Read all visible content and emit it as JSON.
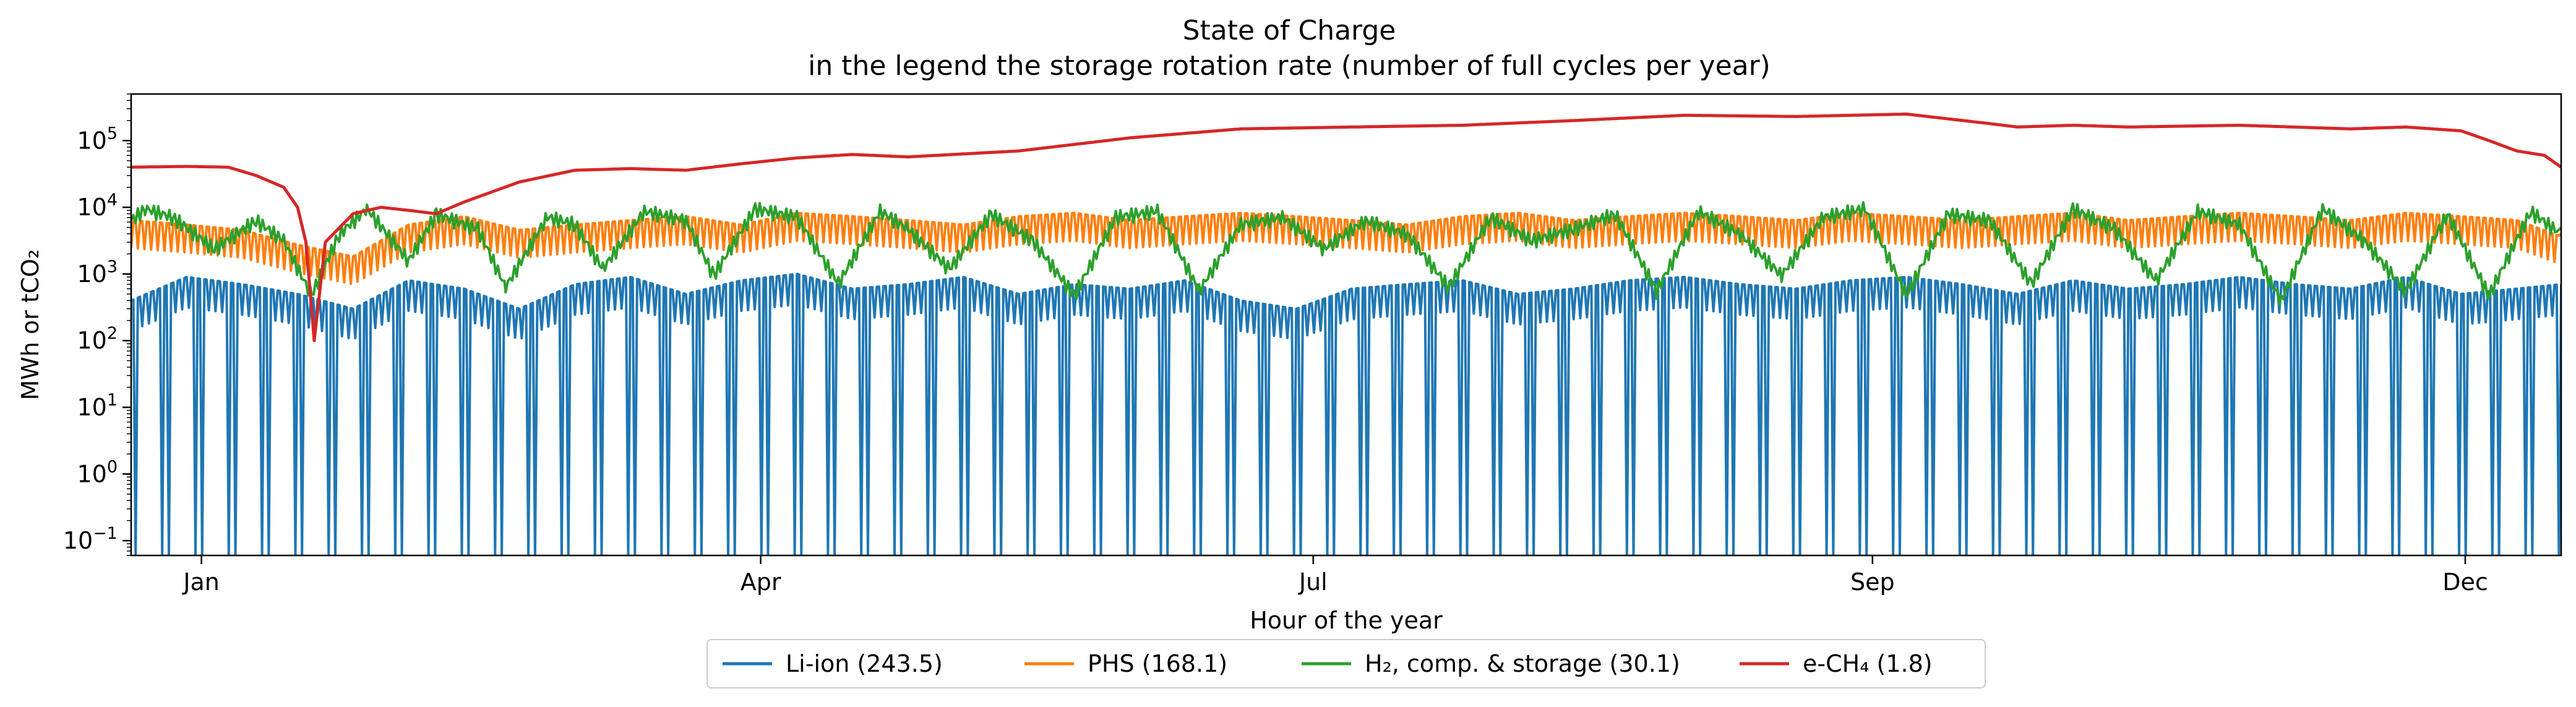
{
  "chart_data": {
    "type": "line",
    "title": "State of Charge",
    "subtitle": "in the legend the storage rotation rate (number of full cycles per year)",
    "xlabel": "Hour of the year",
    "ylabel": "MWh or tCO₂",
    "yscale": "log",
    "ylim": [
      0.06,
      500000
    ],
    "xlim": [
      0,
      8760
    ],
    "x_ticks": [
      {
        "label": "Jan",
        "x": 744
      },
      {
        "label": "Apr",
        "x": 2760
      },
      {
        "label": "Jul",
        "x": 4752
      },
      {
        "label": "Sep",
        "x": 6768
      },
      {
        "label": "Dec",
        "x": 8760
      }
    ],
    "y_ticks": [
      {
        "base": "10",
        "exp": "−1",
        "value": 0.1
      },
      {
        "base": "10",
        "exp": "0",
        "value": 1
      },
      {
        "base": "10",
        "exp": "1",
        "value": 10
      },
      {
        "base": "10",
        "exp": "2",
        "value": 100
      },
      {
        "base": "10",
        "exp": "3",
        "value": 1000
      },
      {
        "base": "10",
        "exp": "4",
        "value": 10000
      },
      {
        "base": "10",
        "exp": "5",
        "value": 100000
      }
    ],
    "grid": false,
    "legend_position": "bottom-center",
    "series": [
      {
        "name": "Li-ion (243.5)",
        "color": "#1f77b4",
        "behavior": "daily cycling between ~1e3 and near-empty",
        "x": [
          0,
          200,
          400,
          600,
          800,
          1000,
          1200,
          1400,
          1600,
          1800,
          2000,
          2200,
          2400,
          2600,
          2800,
          3000,
          3200,
          3400,
          3600,
          3800,
          4000,
          4200,
          4400,
          4600,
          4800,
          5000,
          5200,
          5400,
          5600,
          5800,
          6000,
          6200,
          6400,
          6600,
          6800,
          7000,
          7200,
          7400,
          7600,
          7800,
          8000,
          8200,
          8400,
          8600,
          8760
        ],
        "y": [
          400,
          900,
          700,
          500,
          300,
          800,
          600,
          300,
          700,
          900,
          500,
          800,
          1000,
          600,
          700,
          900,
          500,
          700,
          600,
          800,
          400,
          300,
          600,
          700,
          800,
          500,
          600,
          800,
          900,
          700,
          600,
          800,
          900,
          700,
          500,
          800,
          600,
          700,
          900,
          700,
          600,
          900,
          500,
          600,
          700
        ]
      },
      {
        "name": "PHS (168.1)",
        "color": "#ff7f0e",
        "behavior": "daily cycling between ~1e4 and ~1e3, with frequent drops",
        "x": [
          0,
          200,
          400,
          600,
          800,
          1000,
          1200,
          1400,
          1600,
          1800,
          2000,
          2200,
          2400,
          2600,
          2800,
          3000,
          3200,
          3400,
          3600,
          3800,
          4000,
          4200,
          4400,
          4600,
          4800,
          5000,
          5200,
          5400,
          5600,
          5800,
          6000,
          6200,
          6400,
          6600,
          6800,
          7000,
          7200,
          7400,
          7600,
          7800,
          8000,
          8200,
          8400,
          8600,
          8760
        ],
        "y": [
          7000,
          6000,
          5000,
          3000,
          2000,
          6000,
          8000,
          5000,
          6000,
          7000,
          8000,
          6000,
          9000,
          8000,
          7000,
          6000,
          8000,
          9000,
          7000,
          8000,
          9000,
          8000,
          7000,
          6000,
          8000,
          9000,
          7000,
          8000,
          9000,
          8000,
          7000,
          9000,
          8000,
          7000,
          8000,
          9000,
          7000,
          8000,
          9000,
          8000,
          7000,
          9000,
          8000,
          7000,
          4000
        ]
      },
      {
        "name": "H₂, comp. & storage (30.1)",
        "color": "#2ca02c",
        "behavior": "weekly cycling around ~5e3–1e4",
        "x": [
          0,
          50,
          150,
          300,
          450,
          550,
          650,
          750,
          850,
          1000,
          1100,
          1250,
          1350,
          1500,
          1600,
          1700,
          1850,
          2000,
          2100,
          2250,
          2400,
          2550,
          2700,
          2800,
          2950,
          3100,
          3250,
          3400,
          3550,
          3700,
          3850,
          4000,
          4150,
          4300,
          4450,
          4600,
          4750,
          4900,
          5050,
          5200,
          5350,
          5500,
          5650,
          5800,
          5950,
          6100,
          6250,
          6400,
          6550,
          6700,
          6850,
          7000,
          7150,
          7300,
          7450,
          7600,
          7750,
          7900,
          8050,
          8200,
          8350,
          8500,
          8650,
          8760
        ],
        "y": [
          8000,
          12000,
          9000,
          3000,
          8000,
          4000,
          600,
          5000,
          12000,
          2000,
          10000,
          6000,
          800,
          9000,
          7000,
          1500,
          11000,
          8000,
          1200,
          12000,
          9000,
          900,
          11000,
          6000,
          1500,
          10000,
          4000,
          600,
          9000,
          11000,
          700,
          7000,
          9000,
          3000,
          8000,
          5000,
          800,
          9000,
          4000,
          6000,
          10000,
          700,
          11000,
          5000,
          1200,
          9000,
          12000,
          600,
          10000,
          8000,
          900,
          12000,
          6000,
          1000,
          11000,
          7000,
          500,
          12000,
          4000,
          700,
          10000,
          600,
          11000,
          5000
        ]
      },
      {
        "name": "e-CH₄ (1.8)",
        "color": "#d62728",
        "behavior": "seasonal storage level",
        "x": [
          0,
          200,
          350,
          450,
          550,
          600,
          630,
          660,
          700,
          800,
          900,
          1000,
          1100,
          1200,
          1400,
          1600,
          1800,
          2000,
          2200,
          2400,
          2600,
          2800,
          3200,
          3600,
          4000,
          4400,
          4800,
          5200,
          5600,
          6000,
          6400,
          6700,
          6800,
          6900,
          7000,
          7200,
          7600,
          8000,
          8200,
          8400,
          8500,
          8600,
          8700,
          8760
        ],
        "y": [
          40000,
          41000,
          40000,
          30000,
          20000,
          10000,
          3000,
          100,
          3000,
          8000,
          10000,
          9000,
          8000,
          12000,
          24000,
          36000,
          38000,
          36000,
          45000,
          55000,
          62000,
          57000,
          70000,
          110000,
          150000,
          160000,
          170000,
          200000,
          240000,
          230000,
          250000,
          180000,
          160000,
          165000,
          170000,
          160000,
          170000,
          150000,
          160000,
          140000,
          100000,
          70000,
          60000,
          40000
        ]
      }
    ]
  }
}
